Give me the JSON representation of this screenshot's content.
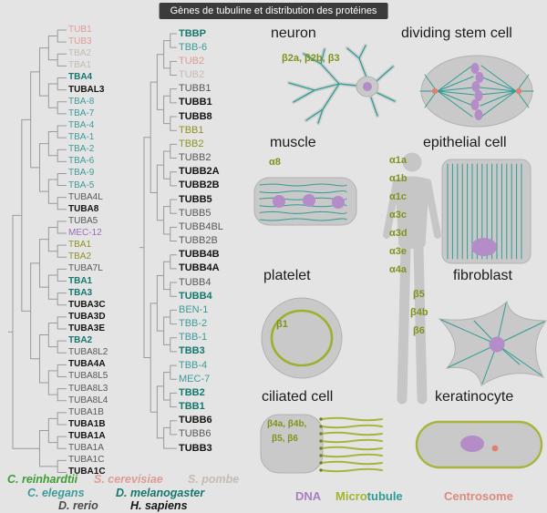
{
  "title": "Gènes de tubuline et distribution des protéines",
  "palette": {
    "salmon": "#dd9c93",
    "pale": "#c6bbb2",
    "teal": "#3d9b9b",
    "dkteal": "#15776d",
    "olive": "#8f9222",
    "gray": "#585858",
    "black": "#141414",
    "purple": "#9b6fb5",
    "isotype_label": "#7d941c",
    "tree_line": "#9a9a9a",
    "cell_fill": "#c9c9c9",
    "microtubule": "#2e9d93",
    "cilia": "#a9b43a",
    "dna": "#b48cc8",
    "centrosome": "#e0806e",
    "title_bg": "#3b3b3b"
  },
  "tree": {
    "alpha": [
      {
        "label": "TUB1",
        "style": "salmon"
      },
      {
        "label": "TUB3",
        "style": "salmon"
      },
      {
        "label": "TBA2",
        "style": "pale"
      },
      {
        "label": "TBA1",
        "style": "pale"
      },
      {
        "label": "TBA4",
        "style": "dkteal"
      },
      {
        "label": "TUBAL3",
        "style": "black"
      },
      {
        "label": "TBA-8",
        "style": "teal"
      },
      {
        "label": "TBA-7",
        "style": "teal"
      },
      {
        "label": "TBA-4",
        "style": "teal"
      },
      {
        "label": "TBA-1",
        "style": "teal"
      },
      {
        "label": "TBA-2",
        "style": "teal"
      },
      {
        "label": "TBA-6",
        "style": "teal"
      },
      {
        "label": "TBA-9",
        "style": "teal"
      },
      {
        "label": "TBA-5",
        "style": "teal"
      },
      {
        "label": "TUBA4L",
        "style": "gray"
      },
      {
        "label": "TUBA8",
        "style": "black"
      },
      {
        "label": "TUBA5",
        "style": "gray"
      },
      {
        "label": "MEC-12",
        "style": "purple"
      },
      {
        "label": "TBA1",
        "style": "olive"
      },
      {
        "label": "TBA2",
        "style": "olive"
      },
      {
        "label": "TUBA7L",
        "style": "gray"
      },
      {
        "label": "TBA1",
        "style": "dkteal"
      },
      {
        "label": "TBA3",
        "style": "dkteal"
      },
      {
        "label": "TUBA3C",
        "style": "black"
      },
      {
        "label": "TUBA3D",
        "style": "black"
      },
      {
        "label": "TUBA3E",
        "style": "black"
      },
      {
        "label": "TBA2",
        "style": "dkteal"
      },
      {
        "label": "TUBA8L2",
        "style": "gray"
      },
      {
        "label": "TUBA4A",
        "style": "black"
      },
      {
        "label": "TUBA8L5",
        "style": "gray"
      },
      {
        "label": "TUBA8L3",
        "style": "gray"
      },
      {
        "label": "TUBA8L4",
        "style": "gray"
      },
      {
        "label": "TUBA1B",
        "style": "gray"
      },
      {
        "label": "TUBA1B",
        "style": "black"
      },
      {
        "label": "TUBA1A",
        "style": "black"
      },
      {
        "label": "TUBA1A",
        "style": "gray"
      },
      {
        "label": "TUBA1C",
        "style": "gray"
      },
      {
        "label": "TUBA1C",
        "style": "black"
      }
    ],
    "beta": [
      {
        "label": "TBBP",
        "style": "dkteal"
      },
      {
        "label": "TBB-6",
        "style": "teal"
      },
      {
        "label": "TUB2",
        "style": "salmon"
      },
      {
        "label": "TUB2",
        "style": "pale"
      },
      {
        "label": "TUBB1",
        "style": "gray"
      },
      {
        "label": "TUBB1",
        "style": "black"
      },
      {
        "label": "TUBB8",
        "style": "black"
      },
      {
        "label": "TBB1",
        "style": "olive"
      },
      {
        "label": "TBB2",
        "style": "olive"
      },
      {
        "label": "TUBB2",
        "style": "gray"
      },
      {
        "label": "TUBB2A",
        "style": "black"
      },
      {
        "label": "TUBB2B",
        "style": "black"
      },
      {
        "label": "TUBB5",
        "style": "black"
      },
      {
        "label": "TUBB5",
        "style": "gray"
      },
      {
        "label": "TUBB4BL",
        "style": "gray"
      },
      {
        "label": "TUBB2B",
        "style": "gray"
      },
      {
        "label": "TUBB4B",
        "style": "black"
      },
      {
        "label": "TUBB4A",
        "style": "black"
      },
      {
        "label": "TUBB4",
        "style": "gray"
      },
      {
        "label": "TUBB4",
        "style": "dkteal"
      },
      {
        "label": "BEN-1",
        "style": "teal"
      },
      {
        "label": "TBB-2",
        "style": "teal"
      },
      {
        "label": "TBB-1",
        "style": "teal"
      },
      {
        "label": "TBB3",
        "style": "dkteal"
      },
      {
        "label": "TBB-4",
        "style": "teal"
      },
      {
        "label": "MEC-7",
        "style": "teal"
      },
      {
        "label": "TBB2",
        "style": "dkteal"
      },
      {
        "label": "TBB1",
        "style": "dkteal"
      },
      {
        "label": "TUBB6",
        "style": "black"
      },
      {
        "label": "TUBB6",
        "style": "gray"
      },
      {
        "label": "TUBB3",
        "style": "black"
      }
    ]
  },
  "cells": {
    "neuron": {
      "heading": "neuron",
      "isotypes": "β2a, β2b, β3"
    },
    "dividing_stem_cell": {
      "heading": "dividing stem cell"
    },
    "muscle": {
      "heading": "muscle",
      "isotypes": "α8"
    },
    "epithelial_cell": {
      "heading": "epithelial cell"
    },
    "platelet": {
      "heading": "platelet",
      "isotypes": "β1"
    },
    "fibroblast": {
      "heading": "fibroblast",
      "isotypes": [
        "β5",
        "β4b",
        "β6"
      ]
    },
    "ciliated_cell": {
      "heading": "ciliated cell",
      "isotypes_line1": "β4a, β4b,",
      "isotypes_line2": "β5, β6"
    },
    "keratinocyte": {
      "heading": "keratinocyte"
    },
    "body_isotypes": [
      "α1a",
      "α1b",
      "α1c",
      "α3c",
      "α3d",
      "α3e",
      "α4a"
    ]
  },
  "species_legend": [
    {
      "label": "C. reinhardtii",
      "color": "#3e9d35"
    },
    {
      "label": "S. cerevisiae",
      "color": "#dd9c93"
    },
    {
      "label": "S. pombe",
      "color": "#c6bbb2"
    },
    {
      "label": "C. elegans",
      "color": "#3d9b9b"
    },
    {
      "label": "D. melanogaster",
      "color": "#15776d"
    },
    {
      "label": "D. rerio",
      "color": "#4a4a4a"
    },
    {
      "label": "H. sapiens",
      "color": "#141414"
    }
  ],
  "color_legend": {
    "dna": {
      "label": "DNA",
      "color": "#a87fc2"
    },
    "microtubule": {
      "part1": "Micro",
      "part2": "tubule",
      "color1": "#a5b42f",
      "color2": "#2e9d93"
    },
    "centrosome": {
      "label": "Centrosome",
      "color": "#dc8a7e"
    }
  }
}
